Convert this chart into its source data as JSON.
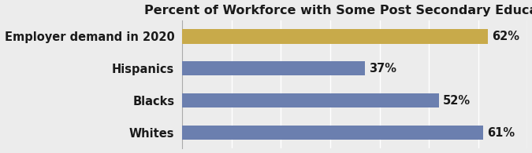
{
  "title": "Percent of Workforce with Some Post Secondary Education",
  "categories": [
    "Employer demand in 2020",
    "Hispanics",
    "Blacks",
    "Whites"
  ],
  "values": [
    62,
    37,
    52,
    61
  ],
  "bar_colors": [
    "#c8aa4a",
    "#6b7faf",
    "#6b7faf",
    "#6b7faf"
  ],
  "background_color": "#ececec",
  "plot_bg_color": "#ececec",
  "text_color": "#1a1a1a",
  "xlim": [
    0,
    70
  ],
  "bar_height": 0.45,
  "title_fontsize": 11.5,
  "label_fontsize": 10.5,
  "value_fontsize": 10.5,
  "grid_color": "#ffffff",
  "grid_positions": [
    10,
    20,
    30,
    40,
    50,
    60,
    70
  ],
  "label_fontweight": "bold",
  "value_fontweight": "bold",
  "axis_line_color": "#aaaaaa"
}
